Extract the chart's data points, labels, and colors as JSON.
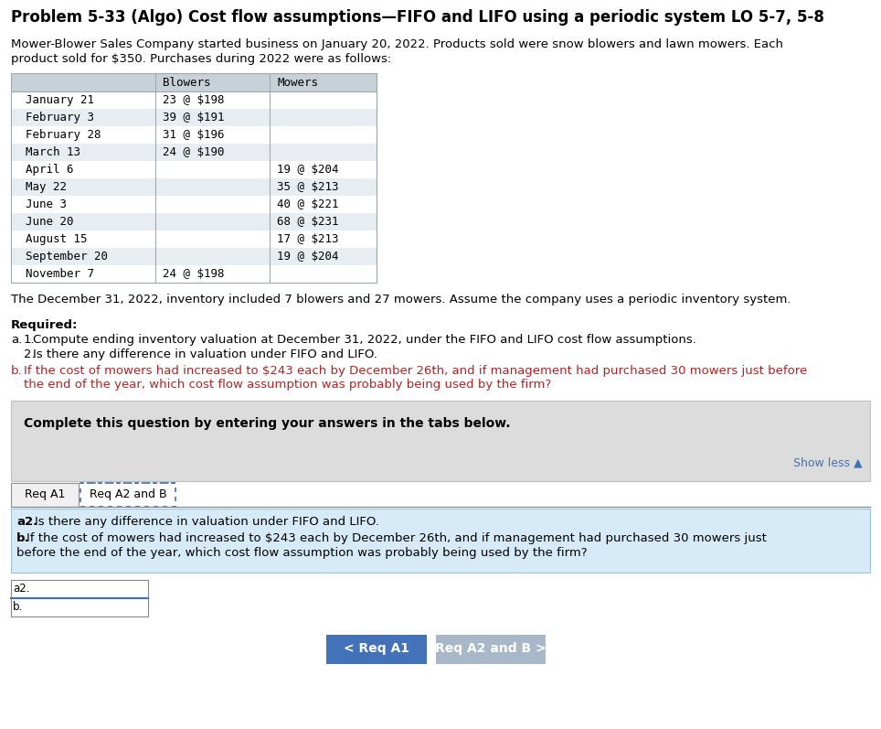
{
  "title": "Problem 5-33 (Algo) Cost flow assumptions—FIFO and LIFO using a periodic system LO 5-7, 5-8",
  "intro_line1": "Mower-Blower Sales Company started business on January 20, 2022. Products sold were snow blowers and lawn mowers. Each",
  "intro_line2": "product sold for $350. Purchases during 2022 were as follows:",
  "table_rows": [
    [
      "January 21",
      "23 @ $198",
      ""
    ],
    [
      "February 3",
      "39 @ $191",
      ""
    ],
    [
      "February 28",
      "31 @ $196",
      ""
    ],
    [
      "March 13",
      "24 @ $190",
      ""
    ],
    [
      "April 6",
      "",
      "19 @ $204"
    ],
    [
      "May 22",
      "",
      "35 @ $213"
    ],
    [
      "June 3",
      "",
      "40 @ $221"
    ],
    [
      "June 20",
      "",
      "68 @ $231"
    ],
    [
      "August 15",
      "",
      "17 @ $213"
    ],
    [
      "September 20",
      "",
      "19 @ $204"
    ],
    [
      "November 7",
      "24 @ $198",
      ""
    ]
  ],
  "inventory_note": "The December 31, 2022, inventory included 7 blowers and 27 mowers. Assume the company uses a periodic inventory system.",
  "complete_box_text": "Complete this question by entering your answers in the tabs below.",
  "show_less": "Show less ▲",
  "tab1": "Req A1",
  "tab2": "Req A2 and B",
  "blue_box_a2_bold": "a2.",
  "blue_box_a2_rest": " Is there any difference in valuation under FIFO and LIFO.",
  "blue_box_b_bold": "b.",
  "blue_box_b_rest": " If the cost of mowers had increased to $243 each by December 26th, and if management had purchased 30 mowers just",
  "blue_box_b_rest2": "before the end of the year, which cost flow assumption was probably being used by the firm?",
  "btn1_text": "< Req A1",
  "btn2_text": "Req A2 and B >",
  "bg_color": "#ffffff",
  "title_color": "#000000",
  "body_text_color": "#000000",
  "mono_font": "DejaVu Sans Mono",
  "table_header_bg": "#c8d0d8",
  "table_alt_row_bg": "#e8edf2",
  "table_white_row_bg": "#ffffff",
  "gray_box_bg": "#dcdcdc",
  "blue_info_box_bg": "#d6eaf8",
  "tab_active_border": "#4472b8",
  "btn1_bg": "#4472b8",
  "btn1_fg": "#ffffff",
  "btn2_bg": "#a8b8c8",
  "btn2_fg": "#ffffff",
  "input_border": "#4472b8",
  "show_less_color": "#4472b8",
  "req_b_color": "#b22222",
  "req_a_color": "#000000"
}
